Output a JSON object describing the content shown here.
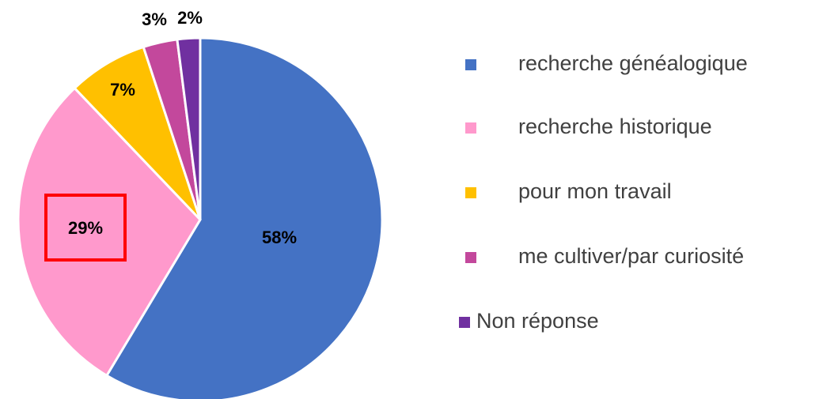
{
  "chart_data": {
    "type": "pie",
    "categories": [
      "recherche généalogique",
      "recherche historique",
      "pour mon travail",
      "me cultiver/par curiosité",
      "Non réponse"
    ],
    "values": [
      58,
      29,
      7,
      3,
      2
    ],
    "value_labels": [
      "58%",
      "29%",
      "7%",
      "3%",
      "2%"
    ],
    "colors": [
      "#4472c4",
      "#ff99cc",
      "#ffc000",
      "#c3489c",
      "#7030a0"
    ],
    "legend": "right"
  }
}
